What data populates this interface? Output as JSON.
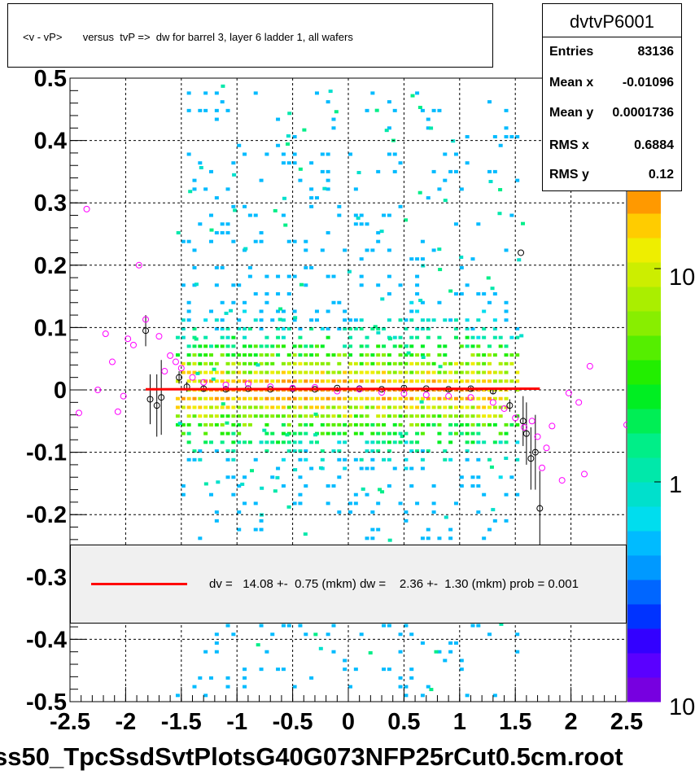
{
  "title": "<v - vP>       versus  tvP =>  dw for barrel 3, layer 6 ladder 1, all wafers",
  "stats": {
    "name": "dvtvP6001",
    "rows": [
      {
        "label": "Entries",
        "value": "83136"
      },
      {
        "label": "Mean x",
        "value": "-0.01096"
      },
      {
        "label": "Mean y",
        "value": "0.0001736"
      },
      {
        "label": "RMS x",
        "value": "0.6884"
      },
      {
        "label": "RMS y",
        "value": "0.12"
      }
    ]
  },
  "legend": {
    "text": "dv =   14.08 +-  0.75 (mkm) dw =    2.36 +-  1.30 (mkm) prob = 0.001",
    "line_color": "#ff0000"
  },
  "footer": "ss50_TpcSsdSvtPlotsG40G073NFP25rCut0.5cm.root",
  "colorbar": {
    "labels": [
      "10",
      "1",
      "10"
    ],
    "colors": [
      "#7700e0",
      "#5a00ff",
      "#3300ff",
      "#0033ff",
      "#0066ff",
      "#0099ff",
      "#00bbff",
      "#00ddee",
      "#00e0cc",
      "#00e8aa",
      "#00ee88",
      "#00ee55",
      "#00ee22",
      "#22ee00",
      "#55ee00",
      "#88ee00",
      "#aaee00",
      "#ccee00",
      "#eeee00",
      "#ffcc00",
      "#ff9900"
    ]
  },
  "chart_data": {
    "type": "scatter",
    "subtype": "2d-histogram with profile points and linear fit",
    "xlim": [
      -2.5,
      2.5
    ],
    "ylim": [
      -0.5,
      0.5
    ],
    "x_ticks": [
      "-2.5",
      "-2",
      "-1.5",
      "-1",
      "-0.5",
      "0",
      "0.5",
      "1",
      "1.5",
      "2",
      "2.5"
    ],
    "y_ticks": [
      "0.5",
      "0.4",
      "0.3",
      "0.2",
      "0.1",
      "0",
      "-0.1",
      "-0.2",
      "-0.3",
      "-0.4",
      "-0.5"
    ],
    "grid": true,
    "fit_line": {
      "x": [
        -1.82,
        1.72
      ],
      "y": [
        0.001,
        0.002
      ],
      "color": "#ff0000"
    },
    "profile_black": [
      {
        "x": -1.82,
        "y": 0.095,
        "err": 0.025
      },
      {
        "x": -1.78,
        "y": -0.015,
        "err": 0.04
      },
      {
        "x": -1.72,
        "y": -0.025,
        "err": 0.05
      },
      {
        "x": -1.68,
        "y": -0.012,
        "err": 0.06
      },
      {
        "x": -1.52,
        "y": 0.02,
        "err": 0.01
      },
      {
        "x": -1.45,
        "y": 0.005,
        "err": 0.008
      },
      {
        "x": -1.3,
        "y": 0.002,
        "err": 0.004
      },
      {
        "x": -1.1,
        "y": 0.001,
        "err": 0.003
      },
      {
        "x": -0.9,
        "y": 0.002,
        "err": 0.002
      },
      {
        "x": -0.7,
        "y": 0.001,
        "err": 0.002
      },
      {
        "x": -0.5,
        "y": 0.002,
        "err": 0.002
      },
      {
        "x": -0.3,
        "y": 0.001,
        "err": 0.002
      },
      {
        "x": -0.1,
        "y": 0.003,
        "err": 0.002
      },
      {
        "x": 0.1,
        "y": 0.002,
        "err": 0.002
      },
      {
        "x": 0.3,
        "y": 0.001,
        "err": 0.002
      },
      {
        "x": 0.5,
        "y": 0.003,
        "err": 0.002
      },
      {
        "x": 0.7,
        "y": 0.002,
        "err": 0.002
      },
      {
        "x": 0.9,
        "y": 0.001,
        "err": 0.003
      },
      {
        "x": 1.1,
        "y": 0.002,
        "err": 0.003
      },
      {
        "x": 1.3,
        "y": -0.002,
        "err": 0.005
      },
      {
        "x": 1.45,
        "y": -0.025,
        "err": 0.01
      },
      {
        "x": 1.55,
        "y": 0.22,
        "err": 0.0
      },
      {
        "x": 1.57,
        "y": -0.05,
        "err": 0.04
      },
      {
        "x": 1.6,
        "y": -0.07,
        "err": 0.05
      },
      {
        "x": 1.64,
        "y": -0.11,
        "err": 0.05
      },
      {
        "x": 1.68,
        "y": -0.1,
        "err": 0.06
      },
      {
        "x": 1.72,
        "y": -0.19,
        "err": 0.06
      }
    ],
    "profile_magenta": [
      {
        "x": -2.42,
        "y": -0.037,
        "err": 0.0
      },
      {
        "x": -2.35,
        "y": 0.29,
        "err": 0.0
      },
      {
        "x": -2.25,
        "y": 0.0,
        "err": 0.0
      },
      {
        "x": -2.18,
        "y": 0.09,
        "err": 0.0
      },
      {
        "x": -2.12,
        "y": 0.045,
        "err": 0.0
      },
      {
        "x": -2.07,
        "y": -0.035,
        "err": 0.0
      },
      {
        "x": -2.02,
        "y": -0.01,
        "err": 0.0
      },
      {
        "x": -1.98,
        "y": 0.082,
        "err": 0.0
      },
      {
        "x": -1.93,
        "y": 0.072,
        "err": 0.0
      },
      {
        "x": -1.88,
        "y": 0.2,
        "err": 0.0
      },
      {
        "x": -1.82,
        "y": 0.113,
        "err": 0.0
      },
      {
        "x": -1.7,
        "y": 0.086,
        "err": 0.0
      },
      {
        "x": -1.65,
        "y": 0.03,
        "err": 0.0
      },
      {
        "x": -1.6,
        "y": 0.055,
        "err": 0.0
      },
      {
        "x": -1.55,
        "y": 0.045,
        "err": 0.0
      },
      {
        "x": -1.5,
        "y": 0.035,
        "err": 0.0
      },
      {
        "x": -1.4,
        "y": 0.02,
        "err": 0.0
      },
      {
        "x": -1.3,
        "y": 0.012,
        "err": 0.0
      },
      {
        "x": -1.1,
        "y": 0.008,
        "err": 0.0
      },
      {
        "x": -0.9,
        "y": 0.01,
        "err": 0.0
      },
      {
        "x": -0.7,
        "y": 0.005,
        "err": 0.0
      },
      {
        "x": -0.5,
        "y": 0.003,
        "err": 0.0
      },
      {
        "x": -0.3,
        "y": 0.004,
        "err": 0.0
      },
      {
        "x": -0.1,
        "y": -0.002,
        "err": 0.0
      },
      {
        "x": 0.1,
        "y": 0.001,
        "err": 0.0
      },
      {
        "x": 0.3,
        "y": -0.004,
        "err": 0.0
      },
      {
        "x": 0.5,
        "y": -0.006,
        "err": 0.0
      },
      {
        "x": 0.7,
        "y": -0.008,
        "err": 0.0
      },
      {
        "x": 0.9,
        "y": -0.01,
        "err": 0.0
      },
      {
        "x": 1.1,
        "y": -0.012,
        "err": 0.0
      },
      {
        "x": 1.3,
        "y": -0.02,
        "err": 0.0
      },
      {
        "x": 1.4,
        "y": -0.03,
        "err": 0.0
      },
      {
        "x": 1.5,
        "y": -0.045,
        "err": 0.0
      },
      {
        "x": 1.58,
        "y": -0.06,
        "err": 0.0
      },
      {
        "x": 1.65,
        "y": -0.05,
        "err": 0.0
      },
      {
        "x": 1.7,
        "y": -0.075,
        "err": 0.0
      },
      {
        "x": 1.74,
        "y": -0.125,
        "err": 0.0
      },
      {
        "x": 1.78,
        "y": -0.093,
        "err": 0.0
      },
      {
        "x": 1.83,
        "y": -0.058,
        "err": 0.0
      },
      {
        "x": 1.92,
        "y": -0.145,
        "err": 0.0
      },
      {
        "x": 1.98,
        "y": -0.005,
        "err": 0.0
      },
      {
        "x": 2.07,
        "y": -0.02,
        "err": 0.0
      },
      {
        "x": 2.12,
        "y": -0.135,
        "err": 0.0
      },
      {
        "x": 2.17,
        "y": 0.038,
        "err": 0.0
      },
      {
        "x": 2.5,
        "y": -0.056,
        "err": 0.0
      }
    ]
  }
}
